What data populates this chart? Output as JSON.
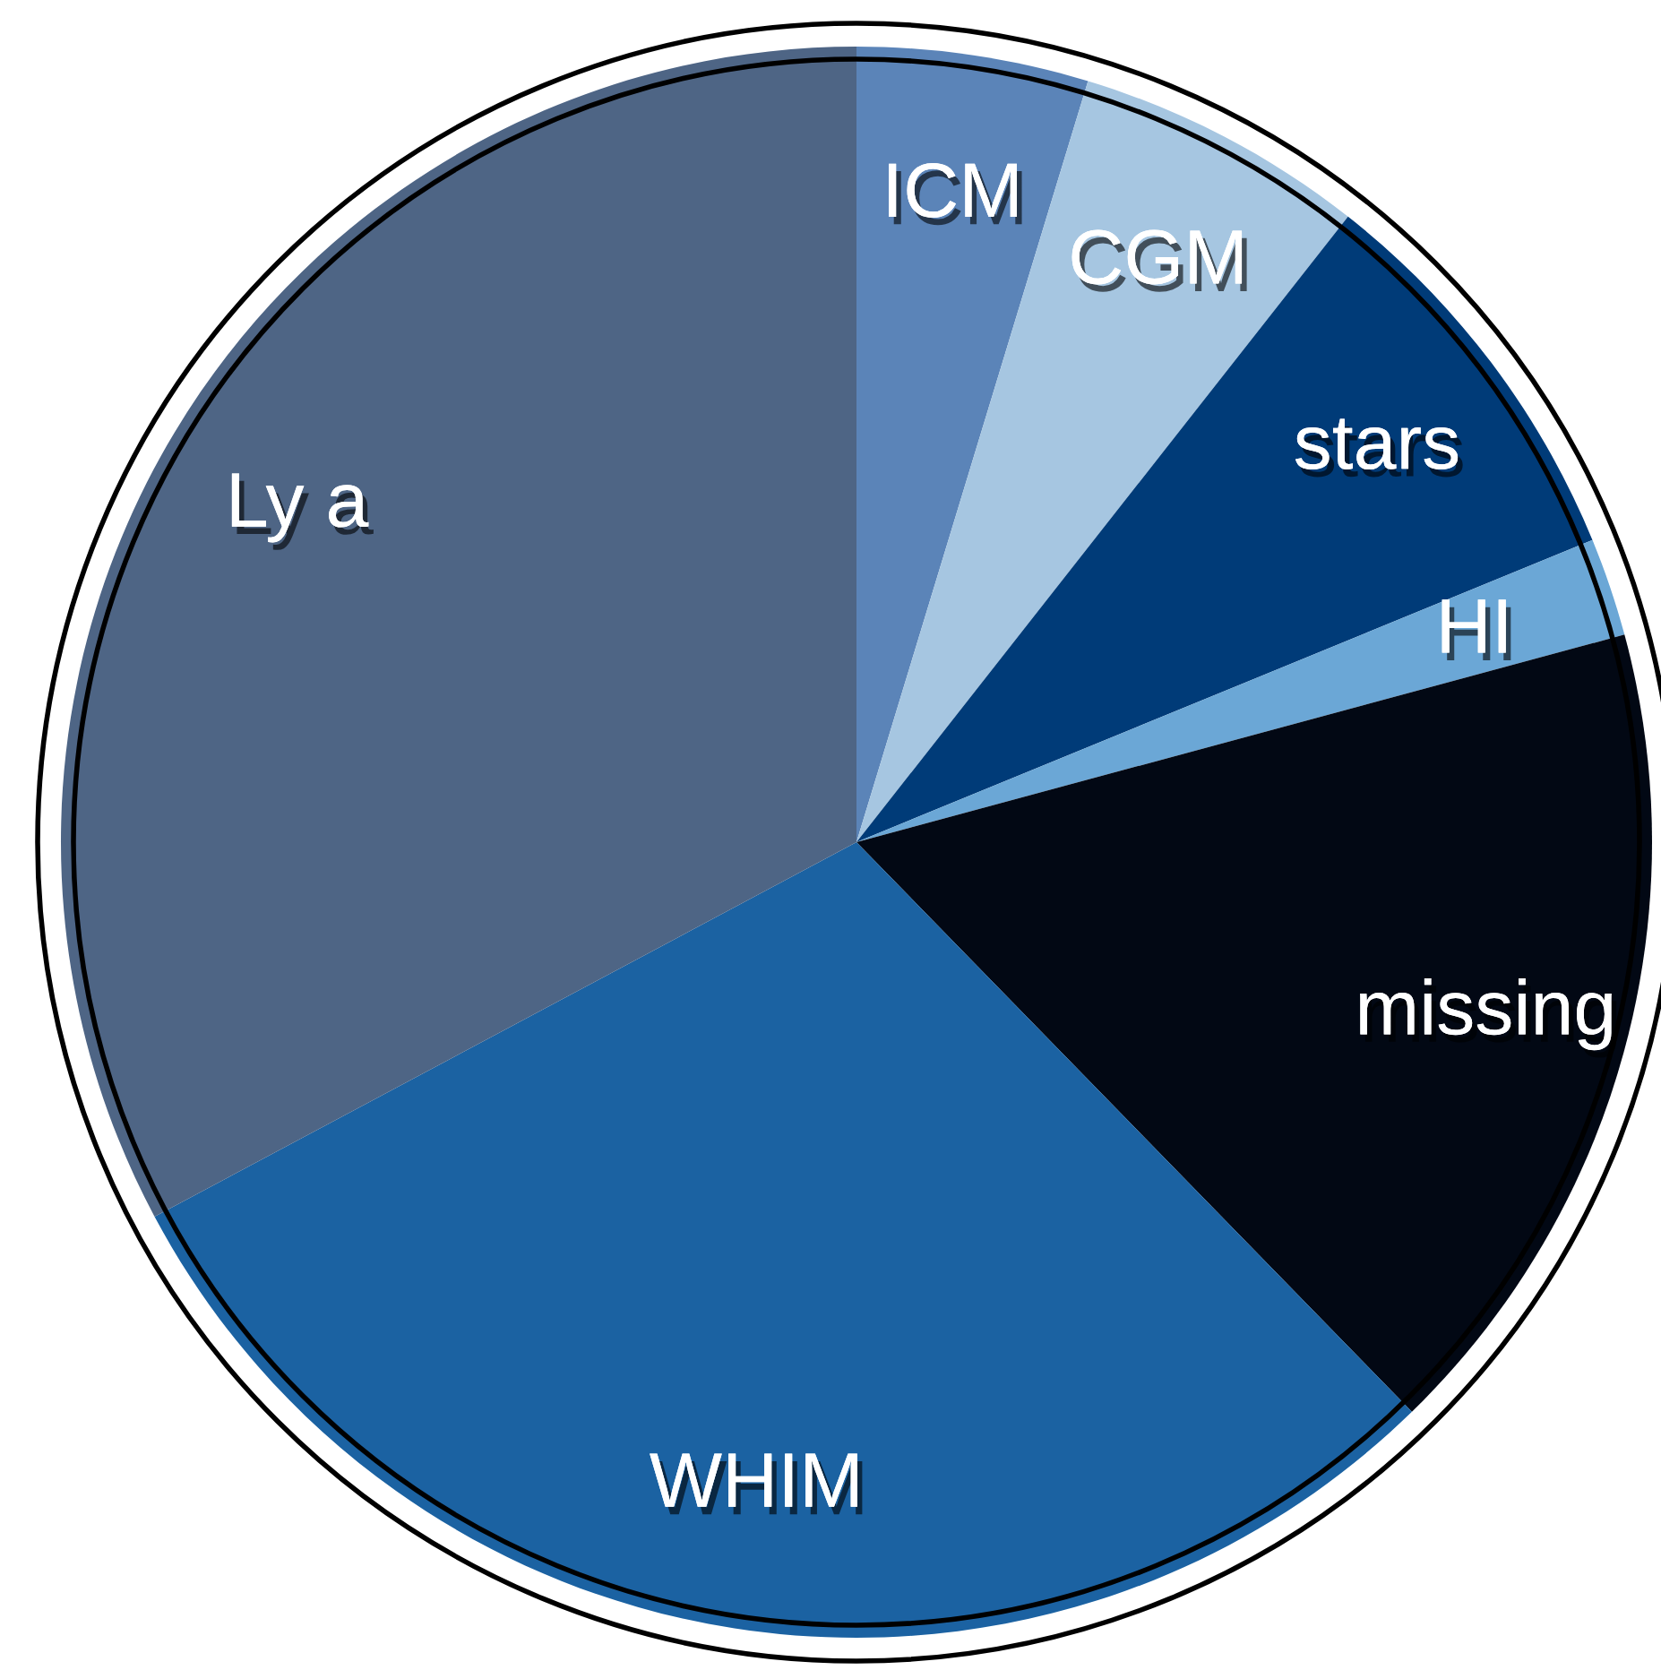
{
  "chart_data": {
    "type": "pie",
    "categories": [
      "ICM",
      "CGM",
      "stars",
      "HI",
      "missing",
      "WHIM",
      "Ly a"
    ],
    "values": [
      4.7,
      5.9,
      8.2,
      2.0,
      16.9,
      29.5,
      32.8
    ],
    "colors": [
      "#5b84b8",
      "#a6c6e1",
      "#003b78",
      "#6ba7d6",
      "#020814",
      "#1b62a2",
      "#4e6585"
    ]
  }
}
